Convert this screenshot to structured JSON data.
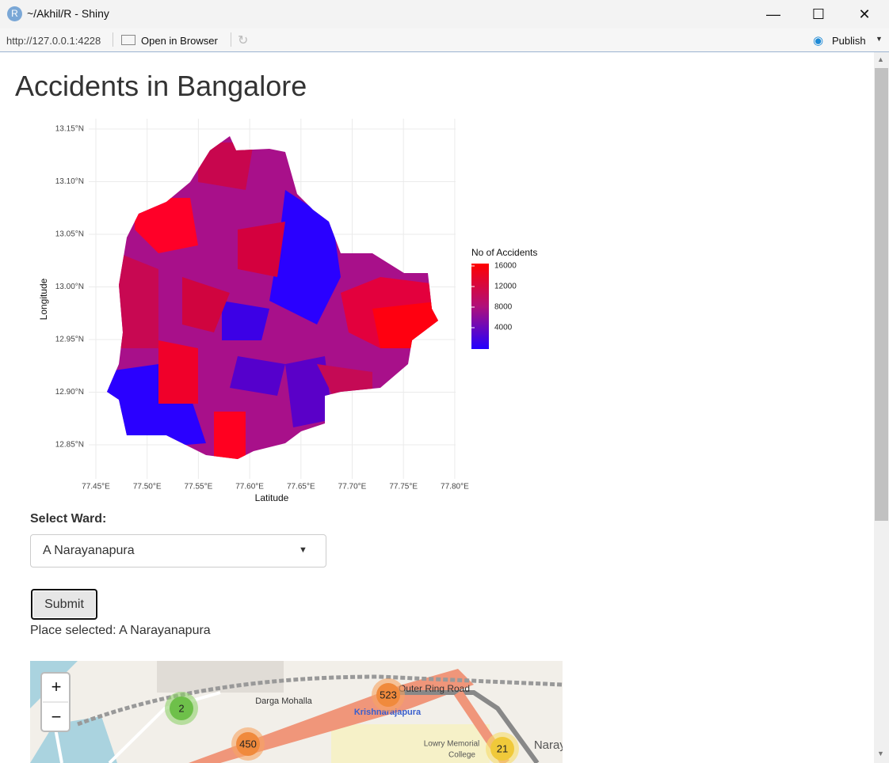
{
  "window": {
    "title": "~/Akhil/R - Shiny",
    "icon": "R"
  },
  "toolbar": {
    "url": "http://127.0.0.1:4228",
    "open": "Open in Browser",
    "publish": "Publish"
  },
  "app": {
    "title": "Accidents in Bangalore",
    "plot": {
      "x_label": "Latitude",
      "y_label": "Longitude",
      "x_ticks": [
        "77.45°E",
        "77.50°E",
        "77.55°E",
        "77.60°E",
        "77.65°E",
        "77.70°E",
        "77.75°E",
        "77.80°E"
      ],
      "y_ticks": [
        "13.15°N",
        "13.10°N",
        "13.05°N",
        "13.00°N",
        "12.95°N",
        "12.90°N",
        "12.85°N"
      ],
      "legend": {
        "title": "No of Accidents",
        "ticks": [
          16000,
          12000,
          8000,
          4000
        ]
      }
    },
    "select_label": "Select Ward:",
    "select_value": "A Narayanapura",
    "button": "Submit",
    "result": "Place selected: A Narayanapura",
    "map": {
      "zoom_in": "+",
      "zoom_out": "−",
      "labels": [
        "Darga Mohalla",
        "Krishnarajapura",
        "Outer Ring Road",
        "Lowry Memorial",
        "College",
        "Naraya"
      ],
      "clusters": [
        2,
        523,
        450,
        21
      ]
    }
  }
}
